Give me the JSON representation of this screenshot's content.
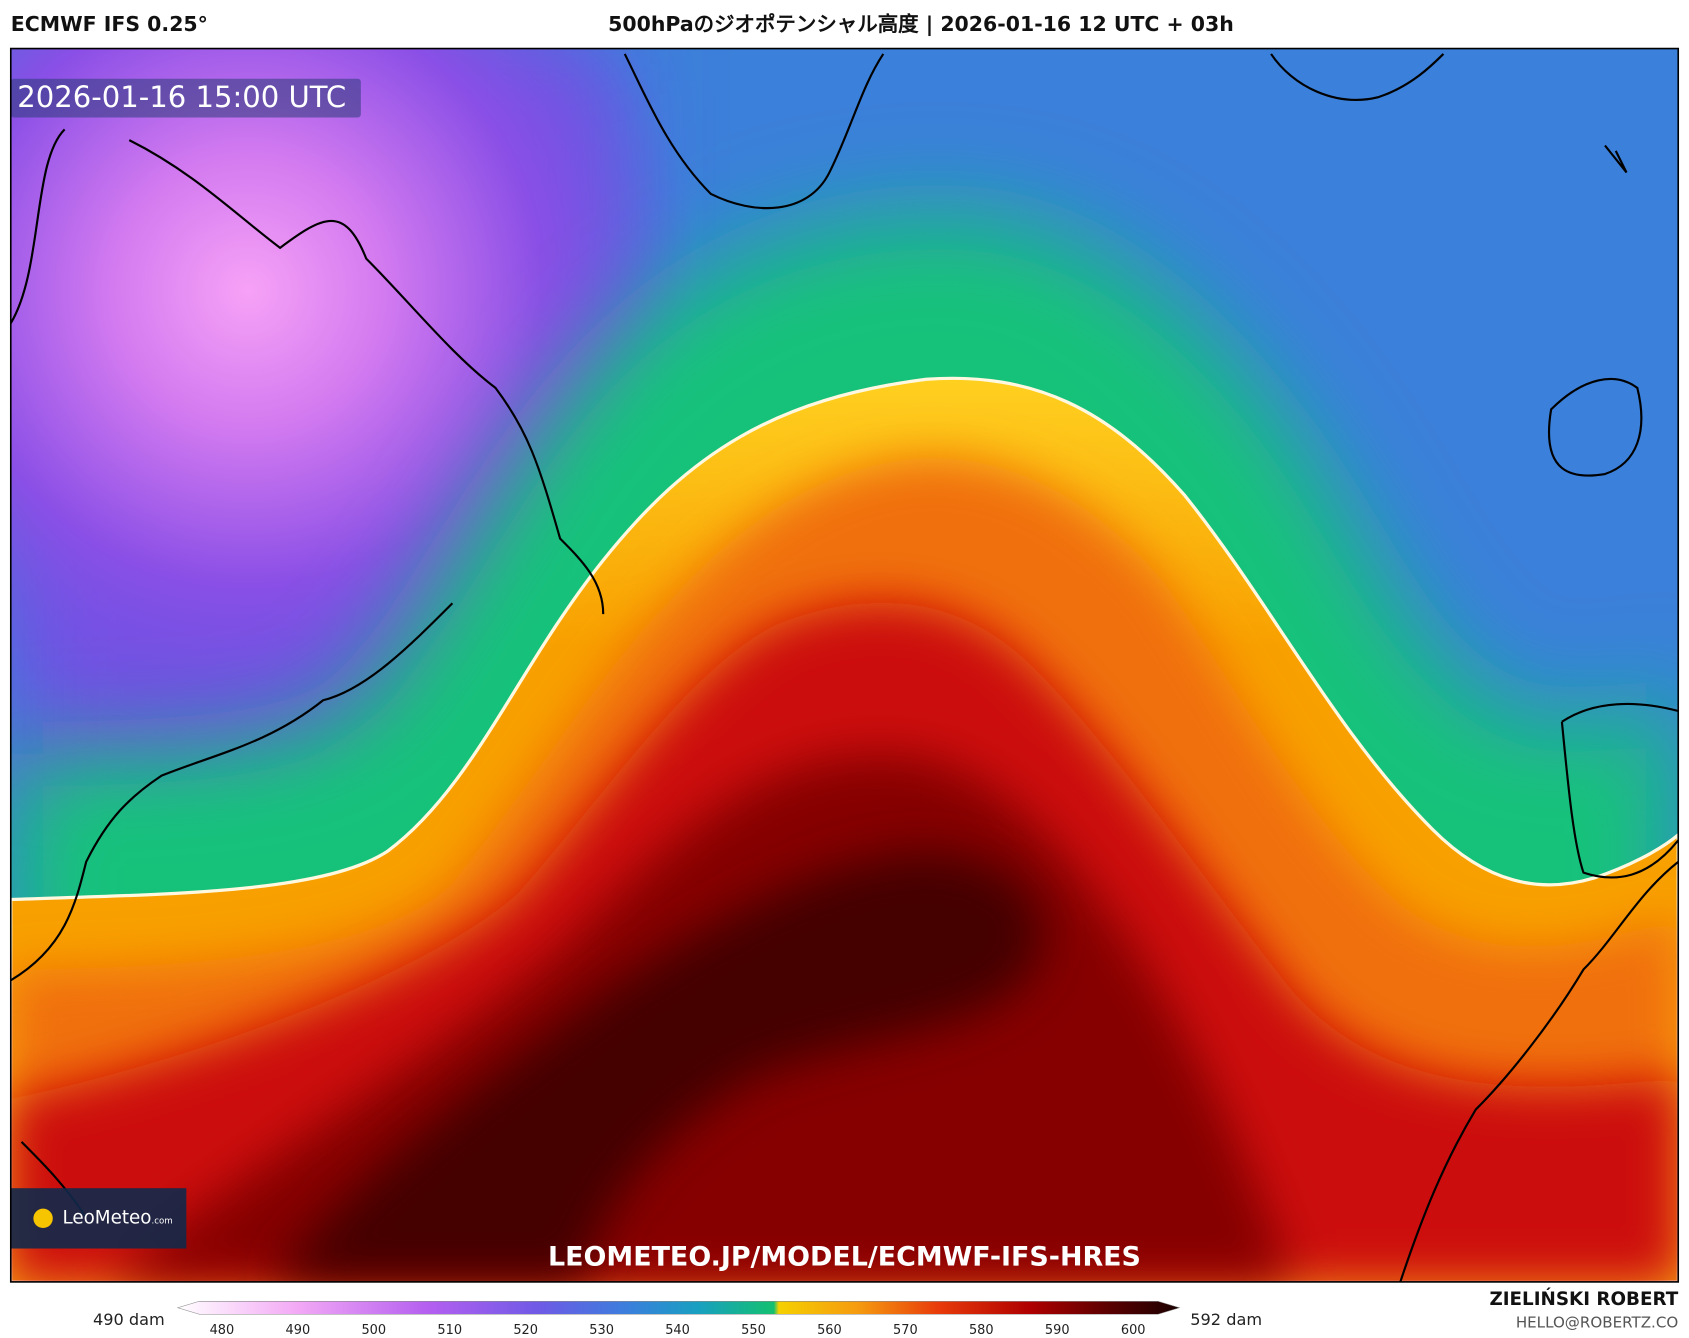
{
  "header": {
    "model": "ECMWF IFS 0.25°",
    "title": "500hPaのジオポテンシャル高度 | 2026-01-16 12 UTC + 03h"
  },
  "map": {
    "timestamp": "2026-01-16 15:00 UTC",
    "url": "LEOMETEO.JP/MODEL/ECMWF-IFS-HRES",
    "logo": {
      "brand": "LeoMeteo",
      "suffix": ".com"
    }
  },
  "colorbar": {
    "min_label": "490 dam",
    "max_label": "592 dam",
    "ticks": [
      "480",
      "490",
      "500",
      "510",
      "520",
      "530",
      "540",
      "550",
      "560",
      "570",
      "580",
      "590",
      "600"
    ]
  },
  "footer": {
    "author": "ZIELIŃSKI ROBERT",
    "email": "HELLO@ROBERTZ.CO"
  }
}
